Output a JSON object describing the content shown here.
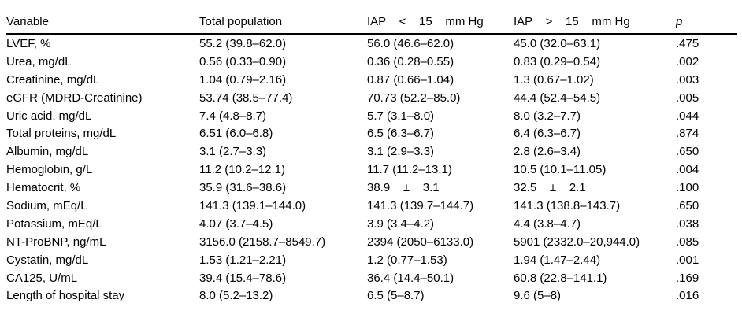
{
  "table": {
    "columns": [
      {
        "label": "Variable",
        "italic": false
      },
      {
        "label": "Total population",
        "italic": false
      },
      {
        "label": "IAP    <    15    mm Hg",
        "italic": false
      },
      {
        "label": "IAP    >    15    mm Hg",
        "italic": false
      },
      {
        "label": "p",
        "italic": true
      }
    ],
    "rows": [
      [
        "LVEF, %",
        "55.2 (39.8–62.0)",
        "56.0 (46.6–62.0)",
        "45.0 (32.0–63.1)",
        ".475"
      ],
      [
        "Urea, mg/dL",
        "0.56 (0.33–0.90)",
        "0.36 (0.28–0.55)",
        "0.83 (0.29–0.54)",
        ".002"
      ],
      [
        "Creatinine, mg/dL",
        "1.04 (0.79–2.16)",
        "0.87 (0.66–1.04)",
        "1.3 (0.67–1.02)",
        ".003"
      ],
      [
        "eGFR (MDRD-Creatinine)",
        "53.74 (38.5–77.4)",
        "70.73 (52.2–85.0)",
        "44.4 (52.4–54.5)",
        ".005"
      ],
      [
        "Uric acid, mg/dL",
        "7.4 (4.8–8.7)",
        "5.7 (3.1–8.0)",
        "8.0 (3.2–7.7)",
        ".044"
      ],
      [
        "Total proteins, mg/dL",
        "6.51 (6.0–6.8)",
        "6.5 (6.3–6.7)",
        "6.4 (6.3–6.7)",
        ".874"
      ],
      [
        "Albumin, mg/dL",
        "3.1 (2.7–3.3)",
        "3.1 (2.9–3.3)",
        "2.8 (2.6–3.4)",
        ".650"
      ],
      [
        "Hemoglobin, g/L",
        "11.2 (10.2–12.1)",
        "11.7 (11.2–13.1)",
        "10.5 (10.1–11.05)",
        ".004"
      ],
      [
        "Hematocrit, %",
        "35.9 (31.6–38.6)",
        "38.9    ±    3.1",
        "32.5    ±    2.1",
        ".100"
      ],
      [
        "Sodium, mEq/L",
        "141.3 (139.1–144.0)",
        "141.3 (139.7–144.7)",
        "141.3 (138.8–143.7)",
        ".650"
      ],
      [
        "Potassium, mEq/L",
        "4.07 (3.7–4.5)",
        "3.9 (3.4–4.2)",
        "4.4 (3.8–4.7)",
        ".038"
      ],
      [
        "NT-ProBNP, ng/mL",
        "3156.0 (2158.7–8549.7)",
        "2394 (2050–6133.0)",
        "5901 (2332.0–20,944.0)",
        ".085"
      ],
      [
        "Cystatin, mg/dL",
        "1.53 (1.21–2.21)",
        "1.2 (0.77–1.53)",
        "1.94 (1.47–2.44)",
        ".001"
      ],
      [
        "CA125, U/mL",
        "39.4 (15.4–78.6)",
        "36.4 (14.4–50.1)",
        "60.8 (22.8–141.1)",
        ".169"
      ],
      [
        "Length of hospital stay",
        "8.0 (5.2–13.2)",
        "6.5 (5–8.7)",
        "9.6 (5–8)",
        ".016"
      ]
    ]
  }
}
